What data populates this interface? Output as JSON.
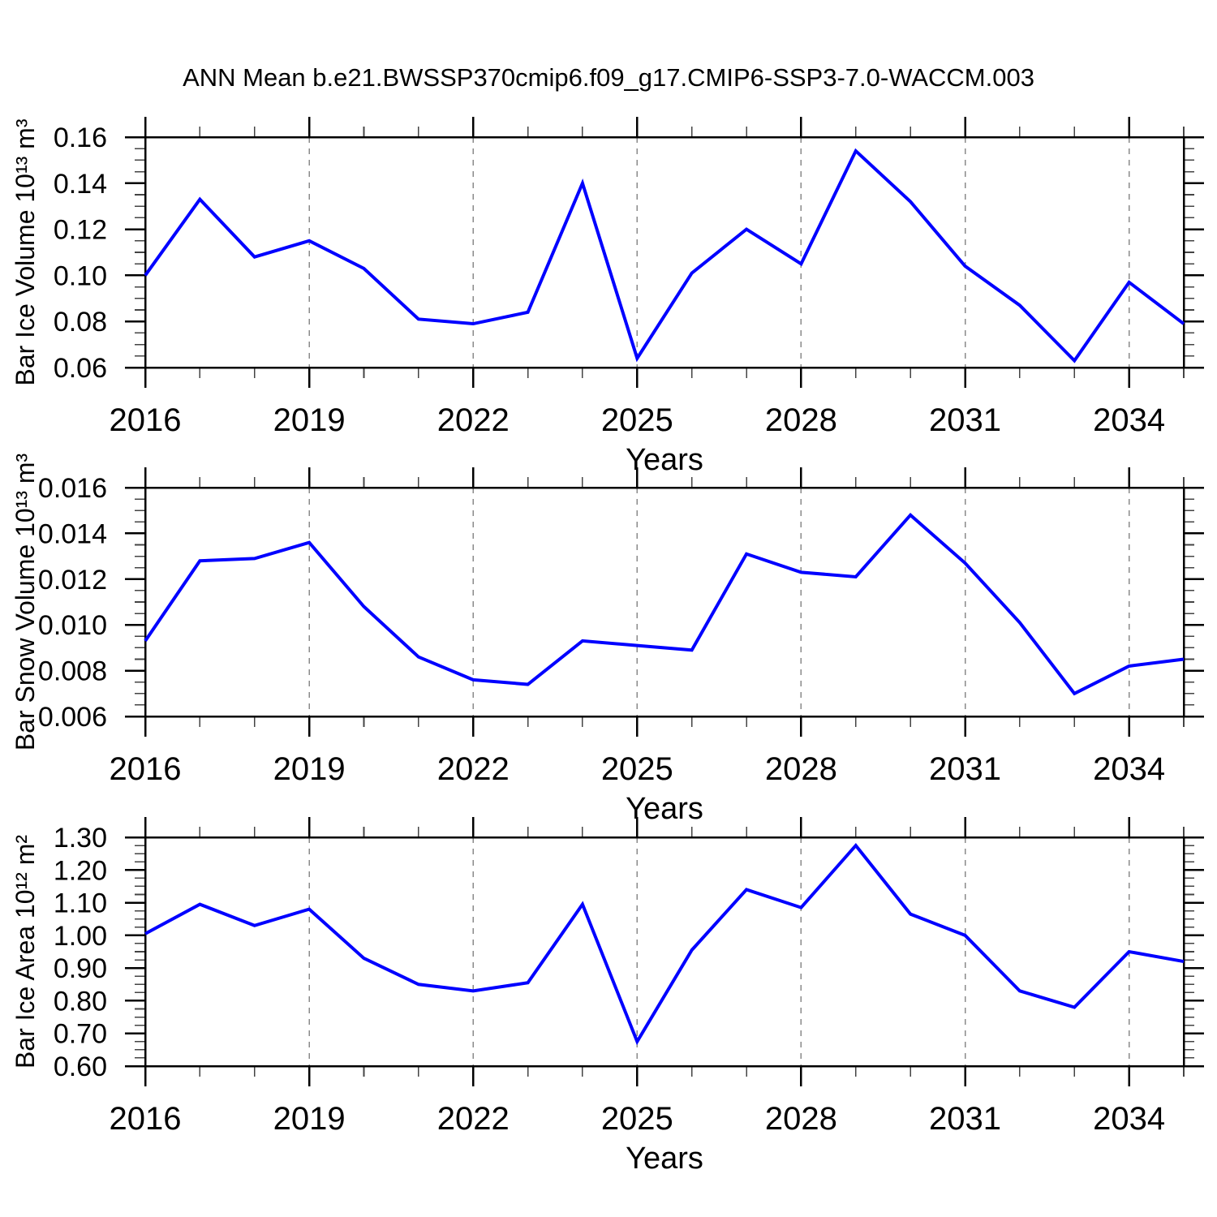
{
  "title": "ANN Mean b.e21.BWSSP370cmip6.f09_g17.CMIP6-SSP3-7.0-WACCM.003",
  "colors": {
    "line": "#0000FF",
    "frame": "#000000",
    "grid": "#8A8A8A",
    "minor_tick": "#444444",
    "text": "#000000"
  },
  "chart_data": [
    {
      "id": "ice-volume",
      "type": "line",
      "ylabel": "Bar Ice Volume 10¹³ m³",
      "xlabel": "Years",
      "x_range": [
        2016,
        2035
      ],
      "x": [
        2016,
        2017,
        2018,
        2019,
        2020,
        2021,
        2022,
        2023,
        2024,
        2025,
        2026,
        2027,
        2028,
        2029,
        2030,
        2031,
        2032,
        2033,
        2034,
        2035
      ],
      "values": [
        0.1,
        0.133,
        0.108,
        0.115,
        0.103,
        0.081,
        0.079,
        0.084,
        0.14,
        0.064,
        0.101,
        0.12,
        0.105,
        0.154,
        0.132,
        0.104,
        0.087,
        0.063,
        0.097,
        0.079
      ],
      "ylim": [
        0.06,
        0.16
      ],
      "yticks": {
        "values": [
          0.16,
          0.14,
          0.12,
          0.1,
          0.08,
          0.06
        ],
        "labels": [
          "0.16",
          "0.14",
          "0.12",
          "0.10",
          "0.08",
          "0.06"
        ],
        "minor_step": 0.005
      },
      "xticks": {
        "values": [
          2016,
          2019,
          2022,
          2025,
          2028,
          2031,
          2034
        ],
        "labels": [
          "2016",
          "2019",
          "2022",
          "2025",
          "2028",
          "2031",
          "2034"
        ],
        "minor_step": 1
      },
      "gridlines_x": [
        2019,
        2022,
        2025,
        2028,
        2031,
        2034
      ],
      "grid_on": true,
      "legend": "none",
      "line_color": "#0000FF"
    },
    {
      "id": "snow-volume",
      "type": "line",
      "ylabel": "Bar Snow Volume 10¹³ m³",
      "xlabel": "Years",
      "x_range": [
        2016,
        2035
      ],
      "x": [
        2016,
        2017,
        2018,
        2019,
        2020,
        2021,
        2022,
        2023,
        2024,
        2025,
        2026,
        2027,
        2028,
        2029,
        2030,
        2031,
        2032,
        2033,
        2034,
        2035
      ],
      "values": [
        0.0093,
        0.0128,
        0.0129,
        0.0136,
        0.0108,
        0.0086,
        0.0076,
        0.0074,
        0.0093,
        0.0091,
        0.0089,
        0.0131,
        0.0123,
        0.0121,
        0.0148,
        0.0127,
        0.0101,
        0.007,
        0.0082,
        0.0085
      ],
      "ylim": [
        0.006,
        0.016
      ],
      "yticks": {
        "values": [
          0.016,
          0.014,
          0.012,
          0.01,
          0.008,
          0.006
        ],
        "labels": [
          "0.016",
          "0.014",
          "0.012",
          "0.010",
          "0.008",
          "0.006"
        ],
        "minor_step": 0.0005
      },
      "xticks": {
        "values": [
          2016,
          2019,
          2022,
          2025,
          2028,
          2031,
          2034
        ],
        "labels": [
          "2016",
          "2019",
          "2022",
          "2025",
          "2028",
          "2031",
          "2034"
        ],
        "minor_step": 1
      },
      "gridlines_x": [
        2019,
        2022,
        2025,
        2028,
        2031,
        2034
      ],
      "grid_on": true,
      "legend": "none",
      "line_color": "#0000FF"
    },
    {
      "id": "ice-area",
      "type": "line",
      "ylabel": "Bar Ice Area 10¹² m²",
      "xlabel": "Years",
      "x_range": [
        2016,
        2035
      ],
      "x": [
        2016,
        2017,
        2018,
        2019,
        2020,
        2021,
        2022,
        2023,
        2024,
        2025,
        2026,
        2027,
        2028,
        2029,
        2030,
        2031,
        2032,
        2033,
        2034,
        2035
      ],
      "values": [
        1.005,
        1.095,
        1.03,
        1.08,
        0.93,
        0.85,
        0.83,
        0.855,
        1.095,
        0.675,
        0.955,
        1.14,
        1.085,
        1.275,
        1.065,
        1.0,
        0.83,
        0.78,
        0.95,
        0.92
      ],
      "ylim": [
        0.6,
        1.3
      ],
      "yticks": {
        "values": [
          1.3,
          1.2,
          1.1,
          1.0,
          0.9,
          0.8,
          0.7,
          0.6
        ],
        "labels": [
          "1.30",
          "1.20",
          "1.10",
          "1.00",
          "0.90",
          "0.80",
          "0.70",
          "0.60"
        ],
        "minor_step": 0.025
      },
      "xticks": {
        "values": [
          2016,
          2019,
          2022,
          2025,
          2028,
          2031,
          2034
        ],
        "labels": [
          "2016",
          "2019",
          "2022",
          "2025",
          "2028",
          "2031",
          "2034"
        ],
        "minor_step": 1
      },
      "gridlines_x": [
        2019,
        2022,
        2025,
        2028,
        2031,
        2034
      ],
      "grid_on": true,
      "legend": "none",
      "line_color": "#0000FF"
    }
  ]
}
